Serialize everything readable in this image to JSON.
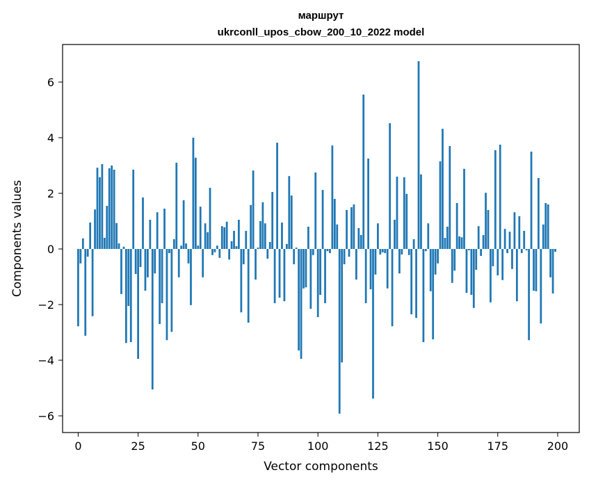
{
  "chart_data": {
    "type": "bar",
    "title": [
      "маршрут",
      "ukrconll_upos_cbow_200_10_2022 model"
    ],
    "xlabel": "Vector components",
    "ylabel": "Components values",
    "xlim": [
      -6.5,
      209
    ],
    "ylim": [
      -6.6,
      7.35
    ],
    "xticks": [
      0,
      25,
      50,
      75,
      100,
      125,
      150,
      175,
      200
    ],
    "yticks": [
      -6,
      -4,
      -2,
      0,
      2,
      4,
      6
    ],
    "bar_color": "#1f77b4",
    "grid": false,
    "x": [
      0,
      1,
      2,
      3,
      4,
      5,
      6,
      7,
      8,
      9,
      10,
      11,
      12,
      13,
      14,
      15,
      16,
      17,
      18,
      19,
      20,
      21,
      22,
      23,
      24,
      25,
      26,
      27,
      28,
      29,
      30,
      31,
      32,
      33,
      34,
      35,
      36,
      37,
      38,
      39,
      40,
      41,
      42,
      43,
      44,
      45,
      46,
      47,
      48,
      49,
      50,
      51,
      52,
      53,
      54,
      55,
      56,
      57,
      58,
      59,
      60,
      61,
      62,
      63,
      64,
      65,
      66,
      67,
      68,
      69,
      70,
      71,
      72,
      73,
      74,
      75,
      76,
      77,
      78,
      79,
      80,
      81,
      82,
      83,
      84,
      85,
      86,
      87,
      88,
      89,
      90,
      91,
      92,
      93,
      94,
      95,
      96,
      97,
      98,
      99,
      100,
      101,
      102,
      103,
      104,
      105,
      106,
      107,
      108,
      109,
      110,
      111,
      112,
      113,
      114,
      115,
      116,
      117,
      118,
      119,
      120,
      121,
      122,
      123,
      124,
      125,
      126,
      127,
      128,
      129,
      130,
      131,
      132,
      133,
      134,
      135,
      136,
      137,
      138,
      139,
      140,
      141,
      142,
      143,
      144,
      145,
      146,
      147,
      148,
      149,
      150,
      151,
      152,
      153,
      154,
      155,
      156,
      157,
      158,
      159,
      160,
      161,
      162,
      163,
      164,
      165,
      166,
      167,
      168,
      169,
      170,
      171,
      172,
      173,
      174,
      175,
      176,
      177,
      178,
      179,
      180,
      181,
      182,
      183,
      184,
      185,
      186,
      187,
      188,
      189,
      190,
      191,
      192,
      193,
      194,
      195,
      196,
      197,
      198,
      199
    ],
    "values": [
      -2.78,
      -0.52,
      0.38,
      -3.12,
      -0.28,
      0.95,
      -2.42,
      1.42,
      2.92,
      2.58,
      3.05,
      0.4,
      1.55,
      2.9,
      3.0,
      2.85,
      0.93,
      0.2,
      -1.62,
      0.08,
      -3.38,
      -2.05,
      -3.35,
      2.85,
      -0.9,
      -3.95,
      -0.65,
      1.85,
      -1.5,
      -1.02,
      1.05,
      -5.05,
      -0.88,
      1.32,
      -2.7,
      -1.95,
      1.45,
      -3.28,
      -0.15,
      -2.98,
      0.35,
      3.1,
      -1.02,
      0.12,
      1.75,
      0.2,
      -0.52,
      -2.02,
      4.0,
      3.28,
      0.12,
      1.52,
      -1.02,
      0.92,
      0.6,
      2.2,
      -0.22,
      -0.12,
      0.12,
      -0.32,
      0.82,
      0.78,
      0.98,
      -0.38,
      0.28,
      0.65,
      0.1,
      1.05,
      -2.28,
      -0.55,
      0.65,
      -2.65,
      1.58,
      2.82,
      -1.1,
      0.05,
      1.0,
      1.68,
      0.92,
      -0.35,
      0.25,
      2.05,
      -1.95,
      3.82,
      -1.75,
      0.95,
      -1.88,
      0.18,
      2.62,
      1.92,
      -0.55,
      0.05,
      -3.65,
      -3.95,
      -1.42,
      -1.38,
      0.8,
      -2.15,
      -0.22,
      2.75,
      -2.45,
      -1.65,
      2.12,
      -1.95,
      -0.08,
      -0.15,
      3.72,
      1.8,
      0.88,
      -5.92,
      -4.08,
      -0.55,
      1.4,
      -0.28,
      1.5,
      1.6,
      -1.1,
      0.75,
      0.5,
      5.55,
      -1.95,
      3.25,
      -1.45,
      -5.38,
      -0.92,
      0.92,
      -0.2,
      -0.12,
      -0.15,
      -1.42,
      4.52,
      -2.78,
      1.05,
      2.6,
      -0.88,
      -0.2,
      2.58,
      1.98,
      -0.22,
      -2.35,
      0.35,
      -2.48,
      6.75,
      2.68,
      -3.35,
      -0.08,
      0.92,
      -1.52,
      -3.25,
      -0.92,
      -0.52,
      3.15,
      4.32,
      0.4,
      0.8,
      3.7,
      -1.22,
      -0.78,
      1.65,
      0.45,
      0.42,
      2.88,
      -1.58,
      -0.05,
      -1.65,
      -2.12,
      -0.75,
      0.82,
      -0.25,
      0.5,
      2.02,
      1.4,
      -1.92,
      -0.62,
      3.55,
      -0.95,
      3.75,
      -1.12,
      0.72,
      -0.15,
      0.62,
      -0.72,
      1.32,
      -1.88,
      1.18,
      -0.15,
      0.65,
      -0.05,
      -3.28,
      3.5,
      -1.5,
      -1.52,
      2.55,
      -2.68,
      0.88,
      1.65,
      1.6,
      -1.02,
      -1.6,
      -0.1
    ]
  }
}
